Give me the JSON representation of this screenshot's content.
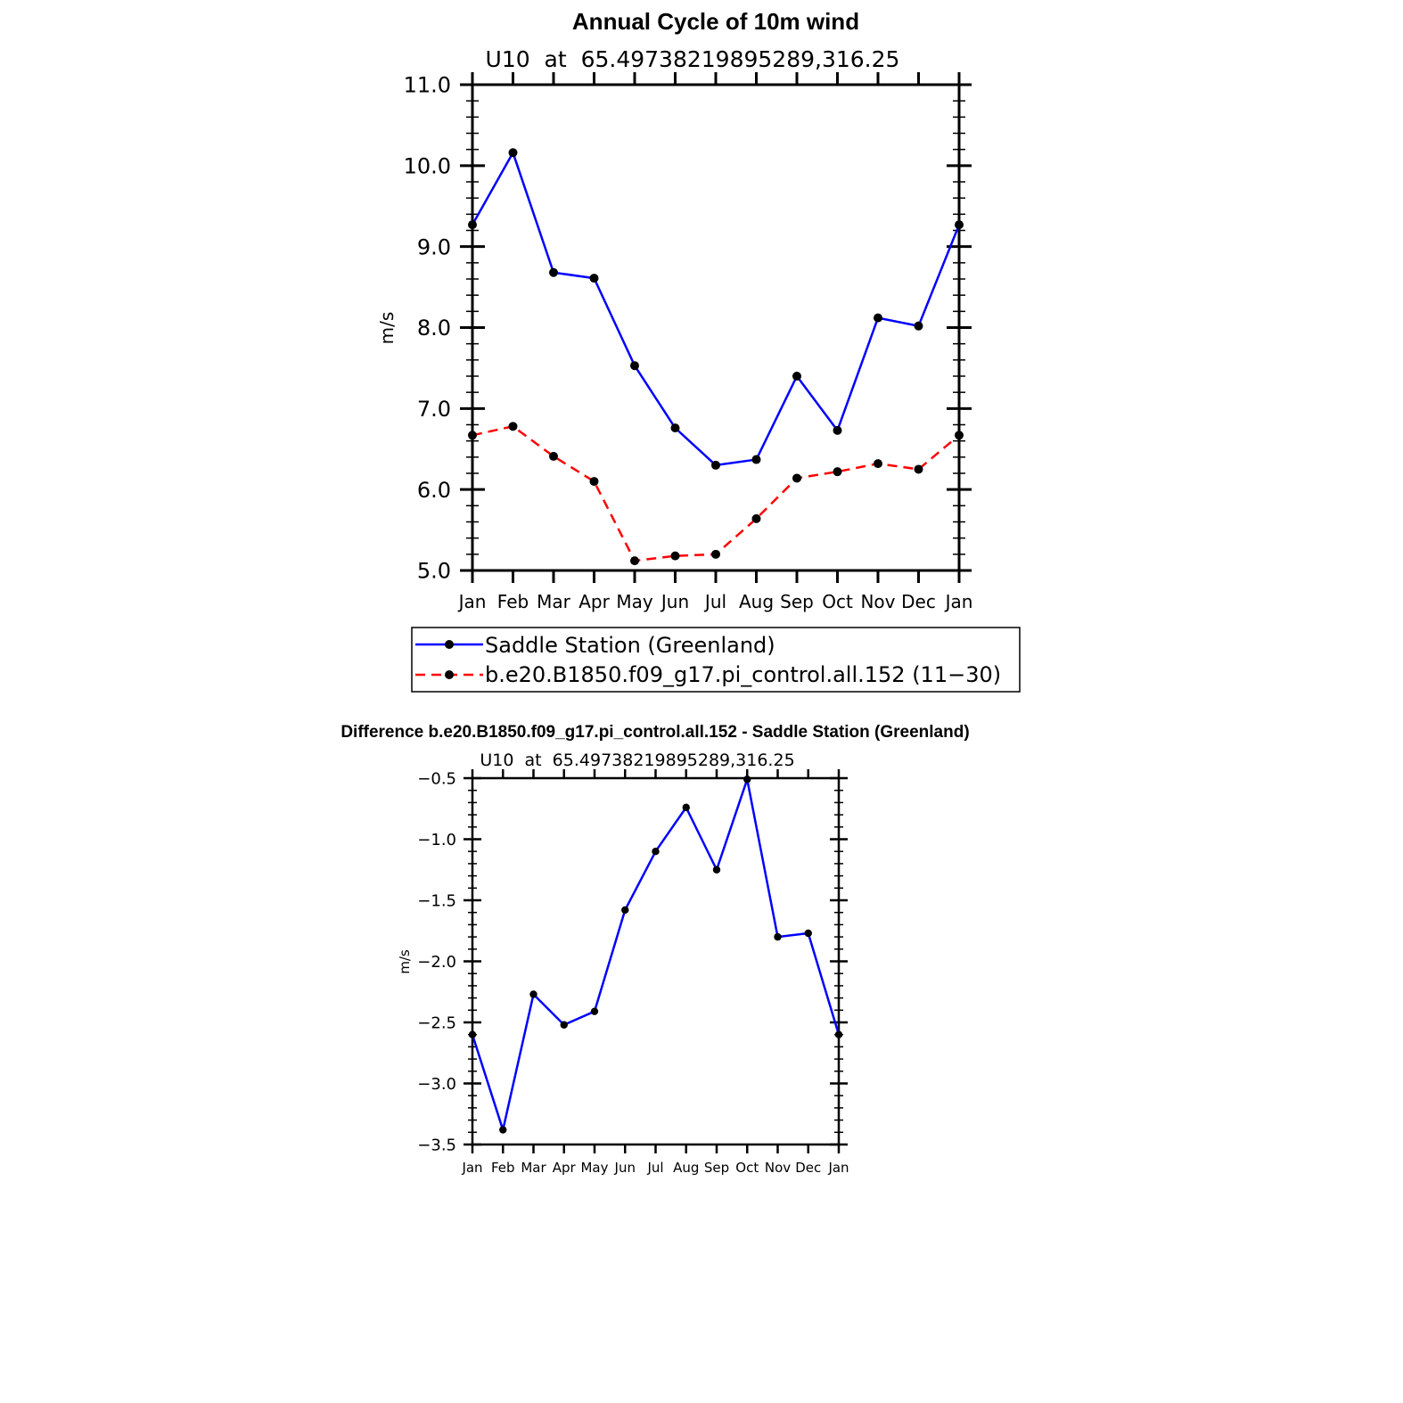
{
  "chart_data": [
    {
      "type": "line",
      "title": "Annual Cycle of 10m wind",
      "subtitle": "U10  at  65.49738219895289,316.25",
      "xlabel": "",
      "ylabel": "m/s",
      "categories": [
        "Jan",
        "Feb",
        "Mar",
        "Apr",
        "May",
        "Jun",
        "Jul",
        "Aug",
        "Sep",
        "Oct",
        "Nov",
        "Dec",
        "Jan"
      ],
      "ylim": [
        5.0,
        11.0
      ],
      "yticks": [
        5.0,
        6.0,
        7.0,
        8.0,
        9.0,
        10.0,
        11.0
      ],
      "ytick_labels": [
        "5.0",
        "6.0",
        "7.0",
        "8.0",
        "9.0",
        "10.0",
        "11.0"
      ],
      "grid": false,
      "legend_position": "bottom",
      "series": [
        {
          "name": "Saddle Station (Greenland)",
          "color": "#0000ff",
          "dash": "solid",
          "values": [
            9.27,
            10.16,
            8.68,
            8.61,
            7.53,
            6.76,
            6.3,
            6.37,
            7.4,
            6.73,
            8.12,
            8.02,
            9.27
          ]
        },
        {
          "name": "b.e20.B1850.f09_g17.pi_control.all.152 (11−30)",
          "color": "#ff0000",
          "dash": "dashed",
          "values": [
            6.67,
            6.78,
            6.41,
            6.1,
            5.12,
            5.18,
            5.2,
            5.64,
            6.14,
            6.22,
            6.32,
            6.25,
            6.67
          ]
        }
      ]
    },
    {
      "type": "line",
      "title": "Difference b.e20.B1850.f09_g17.pi_control.all.152 - Saddle Station (Greenland)",
      "subtitle": "U10  at  65.49738219895289,316.25",
      "xlabel": "",
      "ylabel": "m/s",
      "categories": [
        "Jan",
        "Feb",
        "Mar",
        "Apr",
        "May",
        "Jun",
        "Jul",
        "Aug",
        "Sep",
        "Oct",
        "Nov",
        "Dec",
        "Jan"
      ],
      "ylim": [
        -3.5,
        -0.5
      ],
      "yticks": [
        -3.5,
        -3.0,
        -2.5,
        -2.0,
        -1.5,
        -1.0,
        -0.5
      ],
      "ytick_labels": [
        "−3.5",
        "−3.0",
        "−2.5",
        "−2.0",
        "−1.5",
        "−1.0",
        "−0.5"
      ],
      "grid": false,
      "series": [
        {
          "name": "Difference",
          "color": "#0000ff",
          "dash": "solid",
          "values": [
            -2.6,
            -3.38,
            -2.27,
            -2.52,
            -2.41,
            -1.58,
            -1.1,
            -0.74,
            -1.25,
            -0.51,
            -1.8,
            -1.77,
            -2.6
          ]
        }
      ]
    }
  ]
}
